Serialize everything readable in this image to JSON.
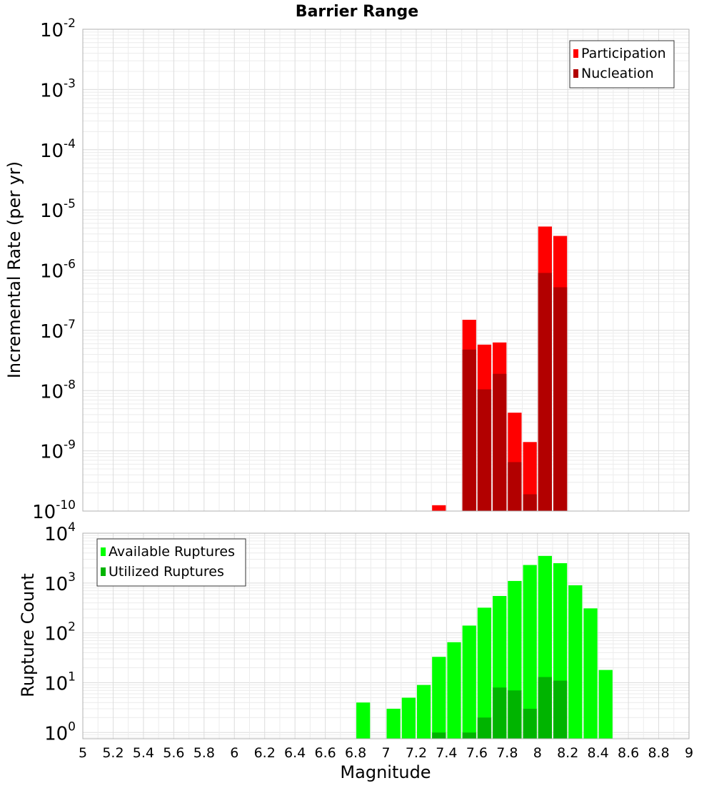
{
  "chart_data": [
    {
      "type": "bar",
      "title": "Barrier Range",
      "ylabel": "Incremental Rate (per yr)",
      "xlabel": "",
      "xlim": [
        5,
        9
      ],
      "ylim": [
        1e-10,
        0.01
      ],
      "yscale": "log",
      "grid": true,
      "legend_placement": "top-right",
      "y_tick_labels": [
        {
          "base": "10",
          "exp": "-10",
          "value": 1e-10
        },
        {
          "base": "10",
          "exp": "-9",
          "value": 1e-09
        },
        {
          "base": "10",
          "exp": "-8",
          "value": 1e-08
        },
        {
          "base": "10",
          "exp": "-7",
          "value": 1e-07
        },
        {
          "base": "10",
          "exp": "-6",
          "value": 1e-06
        },
        {
          "base": "10",
          "exp": "-5",
          "value": 1e-05
        },
        {
          "base": "10",
          "exp": "-4",
          "value": 0.0001
        },
        {
          "base": "10",
          "exp": "-3",
          "value": 0.001
        },
        {
          "base": "10",
          "exp": "-2",
          "value": 0.01
        }
      ],
      "series": [
        {
          "name": "Participation",
          "color": "#ff0000",
          "x": [
            7.35,
            7.55,
            7.65,
            7.75,
            7.85,
            7.95,
            8.05,
            8.15
          ],
          "values": [
            1.25e-10,
            1.5e-07,
            5.8e-08,
            6.3e-08,
            4.3e-09,
            1.4e-09,
            5.3e-06,
            3.7e-06
          ]
        },
        {
          "name": "Nucleation",
          "color": "#b20000",
          "x": [
            7.55,
            7.65,
            7.75,
            7.85,
            7.95,
            8.05,
            8.15
          ],
          "values": [
            4.8e-08,
            1.05e-08,
            1.9e-08,
            6.5e-10,
            1.9e-10,
            9e-07,
            5.2e-07
          ]
        }
      ]
    },
    {
      "type": "bar",
      "title": "",
      "ylabel": "Rupture Count",
      "xlabel": "Magnitude",
      "xlim": [
        5,
        9
      ],
      "ylim": [
        0.75,
        10000
      ],
      "yscale": "log",
      "grid": true,
      "legend_placement": "top-left",
      "x_ticks": [
        "5",
        "5.2",
        "5.4",
        "5.6",
        "5.8",
        "6",
        "6.2",
        "6.4",
        "6.6",
        "6.8",
        "7",
        "7.2",
        "7.4",
        "7.6",
        "7.8",
        "8",
        "8.2",
        "8.4",
        "8.6",
        "8.8",
        "9"
      ],
      "y_tick_labels": [
        {
          "base": "10",
          "exp": "0",
          "value": 1
        },
        {
          "base": "10",
          "exp": "1",
          "value": 10
        },
        {
          "base": "10",
          "exp": "2",
          "value": 100
        },
        {
          "base": "10",
          "exp": "3",
          "value": 1000
        },
        {
          "base": "10",
          "exp": "4",
          "value": 10000
        }
      ],
      "series": [
        {
          "name": "Available Ruptures",
          "color": "#00ff00",
          "x": [
            6.85,
            7.05,
            7.15,
            7.25,
            7.35,
            7.45,
            7.55,
            7.65,
            7.75,
            7.85,
            7.95,
            8.05,
            8.15,
            8.25,
            8.35,
            8.45
          ],
          "values": [
            4,
            3,
            5,
            9,
            33,
            65,
            140,
            320,
            550,
            1100,
            2300,
            3500,
            2500,
            900,
            310,
            18
          ]
        },
        {
          "name": "Utilized Ruptures",
          "color": "#00b400",
          "x": [
            7.35,
            7.55,
            7.65,
            7.75,
            7.85,
            7.95,
            8.05,
            8.15
          ],
          "values": [
            1,
            1,
            2,
            8,
            7,
            3,
            13,
            11
          ]
        }
      ]
    }
  ]
}
